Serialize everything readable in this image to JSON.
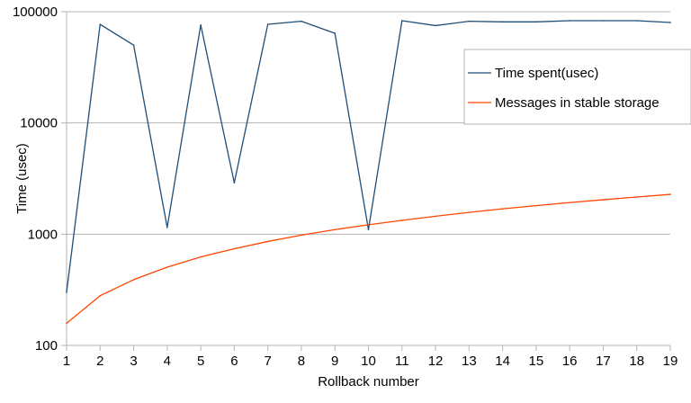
{
  "chart_data": {
    "type": "line",
    "title": "",
    "xlabel": "Rollback number",
    "ylabel": "Time (usec)",
    "yscale": "log",
    "ylim": [
      100,
      100000
    ],
    "yticks": [
      100,
      1000,
      10000,
      100000
    ],
    "ytick_labels": [
      "100",
      "1000",
      "10000",
      "100000"
    ],
    "grid": "horizontal",
    "legend_position": "top-right",
    "x": [
      1,
      2,
      3,
      4,
      5,
      6,
      7,
      8,
      9,
      10,
      11,
      12,
      13,
      14,
      15,
      16,
      17,
      18,
      19
    ],
    "xtick_labels": [
      "1",
      "2",
      "3",
      "4",
      "5",
      "6",
      "7",
      "8",
      "9",
      "10",
      "11",
      "12",
      "13",
      "14",
      "15",
      "16",
      "17",
      "18",
      "19"
    ],
    "series": [
      {
        "name": "Time spent(usec)",
        "color": "#1f4e79",
        "values": [
          300,
          77000,
          50000,
          1150,
          76000,
          2900,
          77000,
          82000,
          64000,
          1100,
          83000,
          75000,
          82000,
          81000,
          81000,
          83000,
          83000,
          83000,
          80000
        ]
      },
      {
        "name": "Messages in stable storage",
        "color": "#ff4500",
        "values": [
          158,
          280,
          390,
          505,
          625,
          740,
          860,
          980,
          1100,
          1215,
          1330,
          1450,
          1570,
          1690,
          1805,
          1925,
          2040,
          2160,
          2280
        ]
      }
    ]
  }
}
